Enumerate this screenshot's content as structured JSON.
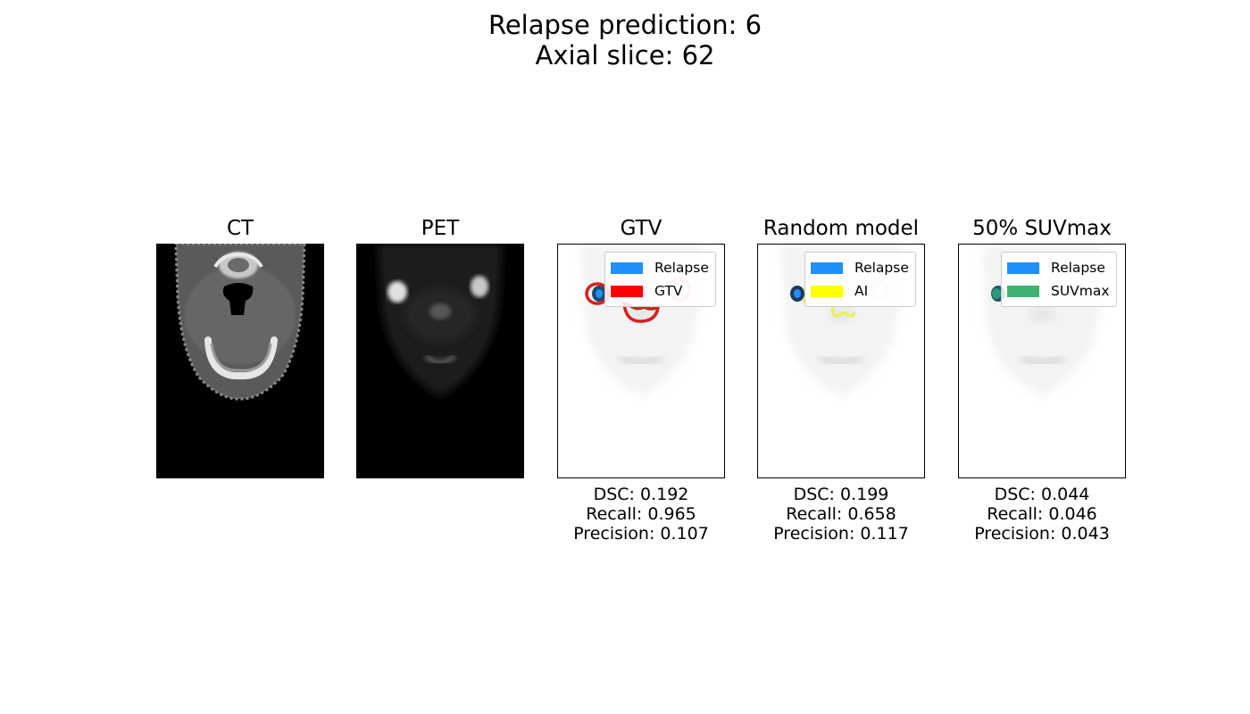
{
  "figure": {
    "title_line1": "Relapse prediction: 6",
    "title_line2": "Axial slice: 62"
  },
  "panels": [
    {
      "title": "CT"
    },
    {
      "title": "PET"
    },
    {
      "title": "GTV",
      "legend": [
        {
          "label": "Relapse",
          "color": "#1e90ff"
        },
        {
          "label": "GTV",
          "color": "#ff0000"
        }
      ],
      "metrics": {
        "dsc": "DSC: 0.192",
        "recall": "Recall: 0.965",
        "precision": "Precision: 0.107"
      }
    },
    {
      "title": "Random model",
      "legend": [
        {
          "label": "Relapse",
          "color": "#1e90ff"
        },
        {
          "label": "AI",
          "color": "#ffff00"
        }
      ],
      "metrics": {
        "dsc": "DSC: 0.199",
        "recall": "Recall: 0.658",
        "precision": "Precision: 0.117"
      }
    },
    {
      "title": "50% SUVmax",
      "legend": [
        {
          "label": "Relapse",
          "color": "#1e90ff"
        },
        {
          "label": "SUVmax",
          "color": "#3cb371"
        }
      ],
      "metrics": {
        "dsc": "DSC: 0.044",
        "recall": "Recall: 0.046",
        "precision": "Precision: 0.043"
      }
    }
  ]
}
